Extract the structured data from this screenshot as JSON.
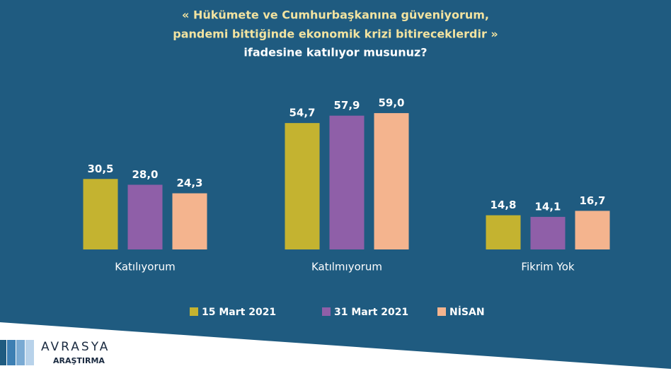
{
  "chart_data": {
    "type": "bar",
    "title": [
      "« Hükümete ve Cumhurbaşkanına güveniyorum,",
      "pandemi bittiğinde ekonomik krizi bitireceklerdir »"
    ],
    "subtitle": "ifadesine katılıyor musunuz?",
    "categories": [
      "Katılıyorum",
      "Katılmıyorum",
      "Fikrim Yok"
    ],
    "series": [
      {
        "name": "15 Mart 2021",
        "color": "#c4b330",
        "values": [
          30.5,
          54.7,
          14.8
        ],
        "value_labels": [
          "30,5",
          "54,7",
          "14,8"
        ]
      },
      {
        "name": "31 Mart 2021",
        "color": "#8f5fa8",
        "values": [
          28.0,
          57.9,
          14.1
        ],
        "value_labels": [
          "28,0",
          "57,9",
          "14,1"
        ]
      },
      {
        "name": "NİSAN",
        "color": "#f4b48e",
        "values": [
          24.3,
          59.0,
          16.7
        ],
        "value_labels": [
          "24,3",
          "59,0",
          "16,7"
        ]
      }
    ]
  },
  "logo": {
    "name": "AVRASYA",
    "sub": "ARAŞTIRMA"
  }
}
